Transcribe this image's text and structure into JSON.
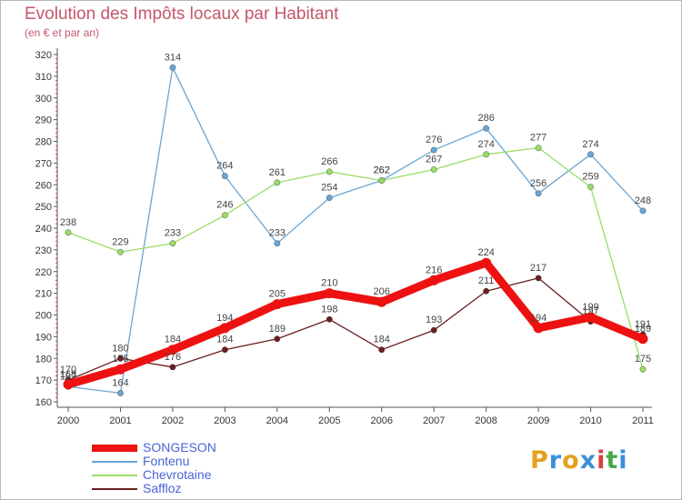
{
  "header": {
    "title": "Evolution des Impôts locaux par Habitant",
    "subtitle": "(en € et par an)"
  },
  "logo": {
    "text": "Proxiti",
    "colors": [
      "#e5a020",
      "#3a8fd8",
      "#e5a020",
      "#3a8fd8",
      "#d84040",
      "#4aa84a",
      "#3a8fd8"
    ]
  },
  "chart_data": {
    "type": "line",
    "x": [
      "2000",
      "2001",
      "2002",
      "2003",
      "2004",
      "2005",
      "2006",
      "2007",
      "2008",
      "2009",
      "2010",
      "2011"
    ],
    "ylim": [
      160,
      320
    ],
    "yticks": [
      160,
      170,
      180,
      190,
      200,
      210,
      220,
      230,
      240,
      250,
      260,
      270,
      280,
      290,
      300,
      310,
      320
    ],
    "grid": false,
    "legend_position": "bottom-left",
    "series": [
      {
        "name": "SONGESON",
        "color": "#ee1111",
        "values": [
          168,
          175,
          184,
          194,
          205,
          210,
          206,
          216,
          224,
          194,
          199,
          189
        ]
      },
      {
        "name": "Fontenu",
        "color": "#6aa6d4",
        "values": [
          167,
          164,
          314,
          264,
          233,
          254,
          262,
          276,
          286,
          256,
          274,
          248
        ]
      },
      {
        "name": "Chevrotaine",
        "color": "#99dd66",
        "values": [
          238,
          229,
          233,
          246,
          261,
          266,
          262,
          267,
          274,
          277,
          259,
          175
        ]
      },
      {
        "name": "Saffloz",
        "color": "#6b1f1f",
        "values": [
          170,
          180,
          176,
          184,
          189,
          198,
          184,
          193,
          211,
          217,
          197,
          191
        ]
      }
    ]
  }
}
